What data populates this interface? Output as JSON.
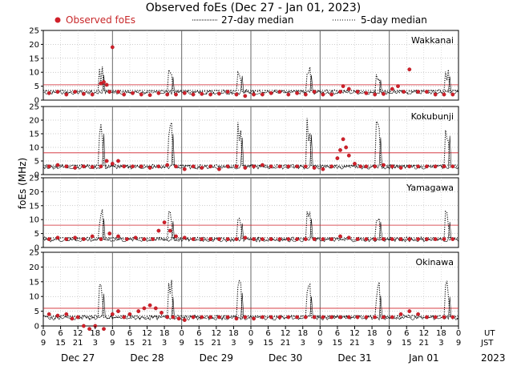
{
  "chart_data": {
    "type": "line",
    "title": "Observed foEs (Dec 27 - Jan 01, 2023)",
    "ylabel": "foEs (MHz)",
    "ylim": [
      0,
      25
    ],
    "yticks": [
      0,
      5,
      10,
      15,
      20,
      25
    ],
    "grid": true,
    "legend": [
      {
        "name": "Observed foEs",
        "style": "red-dots"
      },
      {
        "name": "27-day median",
        "style": "black-dotted"
      },
      {
        "name": "5-day median",
        "style": "black-dotted-sparse"
      }
    ],
    "x_hours_span": 144,
    "ut_ticks": [
      "0",
      "6",
      "12",
      "18",
      "0",
      "6",
      "12",
      "18",
      "0",
      "6",
      "12",
      "18",
      "0",
      "6",
      "12",
      "18",
      "0",
      "6",
      "12",
      "18",
      "0",
      "6",
      "12",
      "18",
      "0"
    ],
    "jst_ticks": [
      "9",
      "15",
      "21",
      "3",
      "9",
      "15",
      "21",
      "3",
      "9",
      "15",
      "21",
      "3",
      "9",
      "15",
      "21",
      "3",
      "9",
      "15",
      "21",
      "3",
      "9",
      "15",
      "21",
      "3",
      "9"
    ],
    "ut_label": "UT",
    "jst_label": "JST",
    "days": [
      "Dec 27",
      "Dec 28",
      "Dec 29",
      "Dec 30",
      "Dec 31",
      "Jan 01"
    ],
    "year": "2023",
    "panels": [
      {
        "station": "Wakkanai",
        "ref_line": 5.5,
        "daily_peak": 12,
        "observed": [
          [
            2,
            2.5
          ],
          [
            5,
            3
          ],
          [
            8,
            2
          ],
          [
            11,
            3
          ],
          [
            14,
            2.2
          ],
          [
            17,
            2
          ],
          [
            20,
            6
          ],
          [
            21,
            6.5
          ],
          [
            22,
            5.5
          ],
          [
            23,
            3
          ],
          [
            24,
            19
          ],
          [
            26,
            3
          ],
          [
            28,
            2
          ],
          [
            31,
            2.5
          ],
          [
            34,
            2
          ],
          [
            37,
            1.8
          ],
          [
            40,
            2.5
          ],
          [
            43,
            2
          ],
          [
            46,
            2
          ],
          [
            49,
            2.5
          ],
          [
            52,
            2
          ],
          [
            55,
            2.2
          ],
          [
            58,
            2
          ],
          [
            61,
            2.3
          ],
          [
            64,
            3
          ],
          [
            67,
            2
          ],
          [
            70,
            1.5
          ],
          [
            73,
            2
          ],
          [
            76,
            2
          ],
          [
            79,
            2.5
          ],
          [
            82,
            3
          ],
          [
            85,
            2
          ],
          [
            88,
            2.5
          ],
          [
            91,
            2
          ],
          [
            94,
            3
          ],
          [
            97,
            2
          ],
          [
            100,
            2
          ],
          [
            103,
            3
          ],
          [
            104,
            5
          ],
          [
            106,
            4
          ],
          [
            109,
            3
          ],
          [
            112,
            2.5
          ],
          [
            115,
            2
          ],
          [
            118,
            2.2
          ],
          [
            121,
            4
          ],
          [
            123,
            5
          ],
          [
            125,
            3
          ],
          [
            127,
            11
          ],
          [
            130,
            3
          ],
          [
            133,
            3
          ],
          [
            136,
            2
          ],
          [
            139,
            2
          ],
          [
            142,
            2
          ]
        ]
      },
      {
        "station": "Kokubunji",
        "ref_line": 8,
        "daily_peak": 22,
        "observed": [
          [
            2,
            3
          ],
          [
            5,
            3.5
          ],
          [
            8,
            3
          ],
          [
            11,
            2.5
          ],
          [
            14,
            3
          ],
          [
            17,
            2.8
          ],
          [
            20,
            3
          ],
          [
            22,
            5
          ],
          [
            24,
            4
          ],
          [
            26,
            5
          ],
          [
            28,
            3
          ],
          [
            31,
            3
          ],
          [
            34,
            3
          ],
          [
            37,
            2.5
          ],
          [
            40,
            3
          ],
          [
            43,
            3.5
          ],
          [
            46,
            3
          ],
          [
            49,
            2
          ],
          [
            52,
            3
          ],
          [
            55,
            2.5
          ],
          [
            58,
            3
          ],
          [
            61,
            2
          ],
          [
            64,
            3
          ],
          [
            67,
            3
          ],
          [
            70,
            2.5
          ],
          [
            73,
            3
          ],
          [
            76,
            3.5
          ],
          [
            79,
            3
          ],
          [
            82,
            3
          ],
          [
            85,
            3
          ],
          [
            88,
            3
          ],
          [
            91,
            3
          ],
          [
            94,
            2.5
          ],
          [
            97,
            2
          ],
          [
            100,
            3
          ],
          [
            102,
            6
          ],
          [
            103,
            9
          ],
          [
            104,
            13
          ],
          [
            105,
            10
          ],
          [
            106,
            7
          ],
          [
            108,
            4
          ],
          [
            110,
            3
          ],
          [
            112,
            3
          ],
          [
            115,
            3
          ],
          [
            118,
            3.5
          ],
          [
            121,
            3
          ],
          [
            124,
            2.5
          ],
          [
            127,
            3
          ],
          [
            130,
            3
          ],
          [
            133,
            3
          ],
          [
            136,
            3
          ],
          [
            139,
            3
          ],
          [
            142,
            3
          ]
        ]
      },
      {
        "station": "Yamagawa",
        "ref_line": 8,
        "daily_peak": 14,
        "observed": [
          [
            2,
            3
          ],
          [
            5,
            3.5
          ],
          [
            8,
            3
          ],
          [
            11,
            3.5
          ],
          [
            14,
            3
          ],
          [
            17,
            4
          ],
          [
            20,
            3
          ],
          [
            23,
            5
          ],
          [
            26,
            4
          ],
          [
            29,
            3
          ],
          [
            32,
            3.5
          ],
          [
            35,
            3
          ],
          [
            38,
            3
          ],
          [
            40,
            6
          ],
          [
            42,
            9
          ],
          [
            44,
            6
          ],
          [
            46,
            4
          ],
          [
            49,
            3.5
          ],
          [
            52,
            3
          ],
          [
            55,
            3
          ],
          [
            58,
            3
          ],
          [
            61,
            3
          ],
          [
            64,
            3
          ],
          [
            67,
            3
          ],
          [
            70,
            3.5
          ],
          [
            73,
            3
          ],
          [
            76,
            3
          ],
          [
            79,
            3
          ],
          [
            82,
            3
          ],
          [
            85,
            3
          ],
          [
            88,
            3
          ],
          [
            91,
            3
          ],
          [
            94,
            3
          ],
          [
            97,
            3
          ],
          [
            100,
            3
          ],
          [
            103,
            4
          ],
          [
            106,
            3.5
          ],
          [
            109,
            3
          ],
          [
            112,
            3
          ],
          [
            115,
            3
          ],
          [
            118,
            3
          ],
          [
            121,
            3
          ],
          [
            124,
            3
          ],
          [
            127,
            3
          ],
          [
            130,
            3
          ],
          [
            133,
            3
          ],
          [
            136,
            3
          ],
          [
            139,
            3
          ],
          [
            142,
            3
          ]
        ]
      },
      {
        "station": "Okinawa",
        "ref_line": 6,
        "daily_peak": 16,
        "observed": [
          [
            2,
            4
          ],
          [
            5,
            3.5
          ],
          [
            8,
            4
          ],
          [
            10,
            2.5
          ],
          [
            12,
            3
          ],
          [
            14,
            0
          ],
          [
            16,
            -1
          ],
          [
            18,
            0
          ],
          [
            21,
            -1
          ],
          [
            24,
            4
          ],
          [
            26,
            5
          ],
          [
            28,
            3
          ],
          [
            30,
            4
          ],
          [
            33,
            5
          ],
          [
            35,
            6
          ],
          [
            37,
            7
          ],
          [
            39,
            6
          ],
          [
            41,
            4.5
          ],
          [
            43,
            3
          ],
          [
            45,
            3
          ],
          [
            47,
            2.5
          ],
          [
            49,
            2
          ],
          [
            52,
            3
          ],
          [
            55,
            3
          ],
          [
            58,
            3
          ],
          [
            61,
            3
          ],
          [
            64,
            3
          ],
          [
            67,
            2.5
          ],
          [
            70,
            3
          ],
          [
            73,
            2.5
          ],
          [
            76,
            3
          ],
          [
            79,
            3
          ],
          [
            82,
            3
          ],
          [
            85,
            3
          ],
          [
            88,
            3
          ],
          [
            91,
            3
          ],
          [
            94,
            3
          ],
          [
            97,
            3
          ],
          [
            100,
            3
          ],
          [
            103,
            3
          ],
          [
            106,
            3
          ],
          [
            109,
            3
          ],
          [
            112,
            3
          ],
          [
            115,
            3
          ],
          [
            118,
            3
          ],
          [
            121,
            3
          ],
          [
            124,
            4
          ],
          [
            127,
            5
          ],
          [
            130,
            4
          ],
          [
            133,
            3
          ],
          [
            136,
            3
          ],
          [
            139,
            3
          ],
          [
            142,
            3
          ]
        ]
      }
    ]
  }
}
